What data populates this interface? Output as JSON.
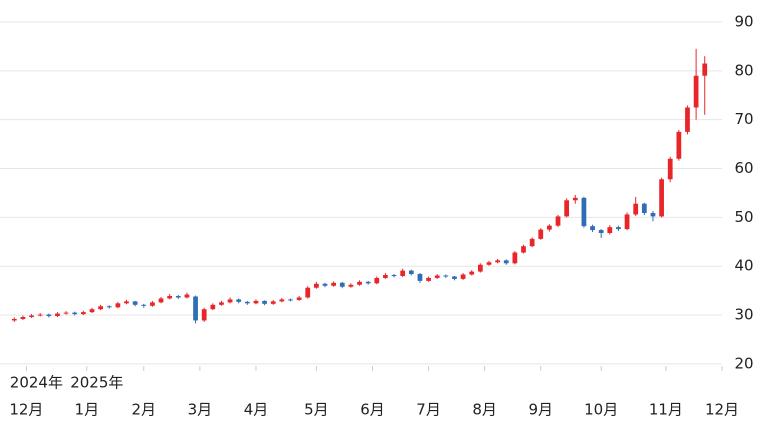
{
  "chart_data": {
    "type": "candlestick",
    "ylim": [
      16.5,
      93.5
    ],
    "yticks": [
      20,
      30,
      40,
      50,
      60,
      70,
      80,
      90
    ],
    "grid": true,
    "xlim": [
      -0.5,
      82
    ],
    "xticks": [
      {
        "value": 1.4,
        "label": "12月"
      },
      {
        "value": 8.4,
        "label": "1月"
      },
      {
        "value": 15,
        "label": "2月"
      },
      {
        "value": 21.5,
        "label": "3月"
      },
      {
        "value": 28,
        "label": "4月"
      },
      {
        "value": 35,
        "label": "5月"
      },
      {
        "value": 41.5,
        "label": "6月"
      },
      {
        "value": 48,
        "label": "7月"
      },
      {
        "value": 54.5,
        "label": "8月"
      },
      {
        "value": 61,
        "label": "9月"
      },
      {
        "value": 68,
        "label": "10月"
      },
      {
        "value": 75.5,
        "label": "11月"
      },
      {
        "value": 82,
        "label": "12月"
      }
    ],
    "year_labels": [
      {
        "value": 1.4,
        "label": "2024年"
      },
      {
        "value": 8.4,
        "label": "2025年"
      }
    ],
    "up_color": "#e8262a",
    "down_color": "#2f6db5",
    "ohlc": [
      [
        28.9,
        29.5,
        28.6,
        29.2
      ],
      [
        29.2,
        29.9,
        29.0,
        29.6
      ],
      [
        29.6,
        30.2,
        29.4,
        29.9
      ],
      [
        29.9,
        30.4,
        29.7,
        30.1
      ],
      [
        30.1,
        30.3,
        29.5,
        29.8
      ],
      [
        29.8,
        30.6,
        29.6,
        30.3
      ],
      [
        30.3,
        30.8,
        30.1,
        30.5
      ],
      [
        30.5,
        30.7,
        29.9,
        30.2
      ],
      [
        30.2,
        30.9,
        30.0,
        30.6
      ],
      [
        30.6,
        31.5,
        30.4,
        31.2
      ],
      [
        31.2,
        32.1,
        31.0,
        31.8
      ],
      [
        31.8,
        32.0,
        31.3,
        31.6
      ],
      [
        31.6,
        32.7,
        31.4,
        32.4
      ],
      [
        32.4,
        33.1,
        32.2,
        32.8
      ],
      [
        32.8,
        32.9,
        31.8,
        32.1
      ],
      [
        32.1,
        32.3,
        31.5,
        31.9
      ],
      [
        31.9,
        32.9,
        31.7,
        32.6
      ],
      [
        32.6,
        33.7,
        32.4,
        33.4
      ],
      [
        33.4,
        34.3,
        33.2,
        33.9
      ],
      [
        33.9,
        34.1,
        33.3,
        33.6
      ],
      [
        33.6,
        34.6,
        33.4,
        34.2
      ],
      [
        33.8,
        34.0,
        28.3,
        28.9
      ],
      [
        28.9,
        31.5,
        28.6,
        31.2
      ],
      [
        31.2,
        32.4,
        31.0,
        32.1
      ],
      [
        32.1,
        32.9,
        31.9,
        32.6
      ],
      [
        32.6,
        33.6,
        32.4,
        33.2
      ],
      [
        33.2,
        33.4,
        32.4,
        32.7
      ],
      [
        32.7,
        32.9,
        32.1,
        32.4
      ],
      [
        32.4,
        33.2,
        32.2,
        32.9
      ],
      [
        32.9,
        33.0,
        32.0,
        32.3
      ],
      [
        32.3,
        33.1,
        32.1,
        32.8
      ],
      [
        32.8,
        33.5,
        32.6,
        33.2
      ],
      [
        33.2,
        33.4,
        32.8,
        33.1
      ],
      [
        33.1,
        33.9,
        32.9,
        33.6
      ],
      [
        33.6,
        35.9,
        33.4,
        35.6
      ],
      [
        35.6,
        36.8,
        35.4,
        36.4
      ],
      [
        36.4,
        36.6,
        35.7,
        36.0
      ],
      [
        36.0,
        36.9,
        35.8,
        36.6
      ],
      [
        36.6,
        36.8,
        35.5,
        35.8
      ],
      [
        35.8,
        36.5,
        35.6,
        36.2
      ],
      [
        36.2,
        37.1,
        36.0,
        36.8
      ],
      [
        36.8,
        37.0,
        36.2,
        36.5
      ],
      [
        36.5,
        37.9,
        36.3,
        37.6
      ],
      [
        37.6,
        38.6,
        37.4,
        38.2
      ],
      [
        38.2,
        38.4,
        37.7,
        38.0
      ],
      [
        38.0,
        39.5,
        37.8,
        39.1
      ],
      [
        39.1,
        39.3,
        38.1,
        38.4
      ],
      [
        38.4,
        38.6,
        36.6,
        37.0
      ],
      [
        37.0,
        37.9,
        36.8,
        37.6
      ],
      [
        37.6,
        38.4,
        37.4,
        38.1
      ],
      [
        38.1,
        38.3,
        37.6,
        37.9
      ],
      [
        37.9,
        38.0,
        37.1,
        37.4
      ],
      [
        37.4,
        38.6,
        37.2,
        38.3
      ],
      [
        38.3,
        39.2,
        38.1,
        38.9
      ],
      [
        38.9,
        40.6,
        38.7,
        40.3
      ],
      [
        40.3,
        41.1,
        40.1,
        40.8
      ],
      [
        40.8,
        41.5,
        40.6,
        41.2
      ],
      [
        41.2,
        41.4,
        40.3,
        40.6
      ],
      [
        40.6,
        43.1,
        40.4,
        42.8
      ],
      [
        42.8,
        44.4,
        42.6,
        44.1
      ],
      [
        44.1,
        45.9,
        43.9,
        45.6
      ],
      [
        45.6,
        47.8,
        45.4,
        47.5
      ],
      [
        47.5,
        48.6,
        47.1,
        48.3
      ],
      [
        48.3,
        50.5,
        48.0,
        50.2
      ],
      [
        50.2,
        53.9,
        50.0,
        53.5
      ],
      [
        53.5,
        54.6,
        52.8,
        54.0
      ],
      [
        54.0,
        54.2,
        47.9,
        48.2
      ],
      [
        48.2,
        48.5,
        47.0,
        47.4
      ],
      [
        47.4,
        47.6,
        45.8,
        46.8
      ],
      [
        46.8,
        48.4,
        46.5,
        48.0
      ],
      [
        48.0,
        48.3,
        47.2,
        47.6
      ],
      [
        47.6,
        51.0,
        47.4,
        50.6
      ],
      [
        50.6,
        54.2,
        50.3,
        52.8
      ],
      [
        52.8,
        53.0,
        50.5,
        50.9
      ],
      [
        50.9,
        51.3,
        49.2,
        50.2
      ],
      [
        50.2,
        58.1,
        50.0,
        57.8
      ],
      [
        57.8,
        62.4,
        57.2,
        62.0
      ],
      [
        62.0,
        67.9,
        61.6,
        67.5
      ],
      [
        67.5,
        72.9,
        67.0,
        72.5
      ],
      [
        72.5,
        84.5,
        70.0,
        79.0
      ],
      [
        79.0,
        83.0,
        71.0,
        81.5
      ]
    ]
  }
}
